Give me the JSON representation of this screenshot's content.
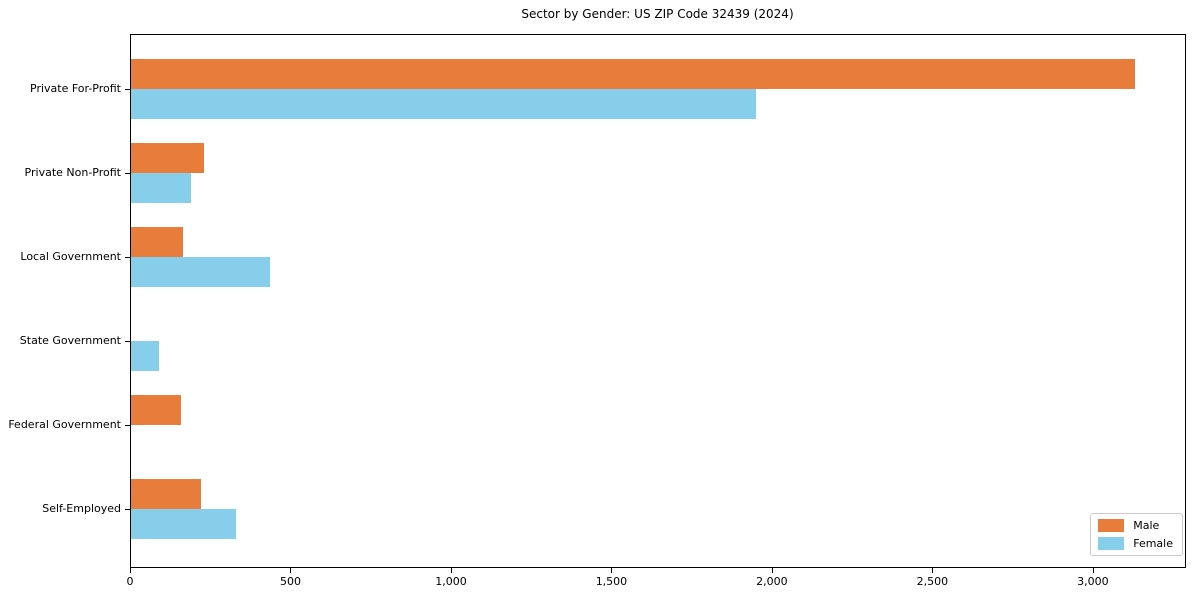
{
  "chart_data": {
    "type": "bar",
    "orientation": "horizontal",
    "title": "Sector by Gender: US ZIP Code 32439 (2024)",
    "categories": [
      "Private For-Profit",
      "Private Non-Profit",
      "Local Government",
      "State Government",
      "Federal Government",
      "Self-Employed"
    ],
    "series": [
      {
        "name": "Male",
        "color": "#e87d3b",
        "values": [
          3130,
          230,
          165,
          0,
          160,
          220
        ]
      },
      {
        "name": "Female",
        "color": "#87ceeb",
        "values": [
          1950,
          190,
          435,
          90,
          0,
          330
        ]
      }
    ],
    "xlabel": "",
    "ylabel": "",
    "xlim": [
      0,
      3287
    ],
    "xticks": {
      "values": [
        0,
        500,
        1000,
        1500,
        2000,
        2500,
        3000
      ],
      "labels": [
        "0",
        "500",
        "1,000",
        "1,500",
        "2,000",
        "2,500",
        "3,000"
      ]
    },
    "legend": {
      "position": "lower right",
      "entries": [
        "Male",
        "Female"
      ]
    },
    "grid": false
  }
}
